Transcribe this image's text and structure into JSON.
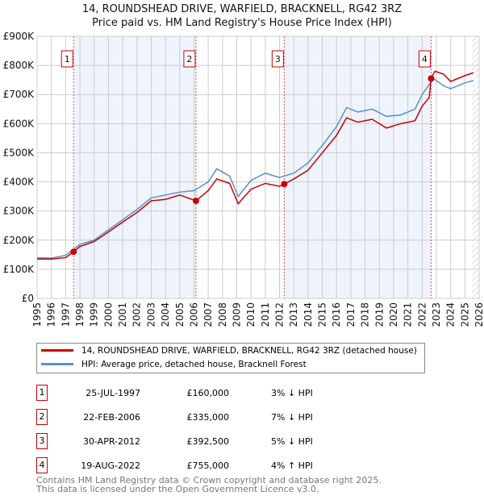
{
  "title": "14, ROUNDSHEAD DRIVE, WARFIELD, BRACKNELL, RG42 3RZ",
  "subtitle": "Price paid vs. HM Land Registry's House Price Index (HPI)",
  "chart_data": {
    "type": "line",
    "ylim": [
      0,
      900000
    ],
    "xlim": [
      1995,
      2026
    ],
    "yticks": [
      {
        "v": 0,
        "l": "£0"
      },
      {
        "v": 100000,
        "l": "£100K"
      },
      {
        "v": 200000,
        "l": "£200K"
      },
      {
        "v": 300000,
        "l": "£300K"
      },
      {
        "v": 400000,
        "l": "£400K"
      },
      {
        "v": 500000,
        "l": "£500K"
      },
      {
        "v": 600000,
        "l": "£600K"
      },
      {
        "v": 700000,
        "l": "£700K"
      },
      {
        "v": 800000,
        "l": "£800K"
      },
      {
        "v": 900000,
        "l": "£900K"
      }
    ],
    "xticks": [
      "1995",
      "1996",
      "1997",
      "1998",
      "1999",
      "2000",
      "2001",
      "2002",
      "2003",
      "2004",
      "2005",
      "2006",
      "2007",
      "2008",
      "2009",
      "2010",
      "2011",
      "2012",
      "2013",
      "2014",
      "2015",
      "2016",
      "2017",
      "2018",
      "2019",
      "2020",
      "2021",
      "2022",
      "2023",
      "2024",
      "2025",
      "2026"
    ],
    "shaded_ranges": [
      [
        1997.56,
        2006.14
      ],
      [
        2012.33,
        2022.63
      ]
    ],
    "hatched_from": 2025.5,
    "series": [
      {
        "name": "14, ROUNDSHEAD DRIVE, WARFIELD, BRACKNELL, RG42 3RZ (detached house)",
        "color": "#cc0000",
        "x": [
          1995,
          1996,
          1997,
          1997.56,
          1998,
          1999,
          2000,
          2001,
          2002,
          2003,
          2004,
          2005,
          2006.14,
          2007,
          2007.6,
          2008.5,
          2009.1,
          2010,
          2011,
          2012,
          2012.33,
          2013,
          2014,
          2015,
          2016,
          2016.7,
          2017.5,
          2018.5,
          2019.5,
          2020.5,
          2021.5,
          2022,
          2022.5,
          2022.63,
          2022.9,
          2023.5,
          2024,
          2025,
          2025.6
        ],
        "y": [
          135000,
          135000,
          140000,
          160000,
          178000,
          195000,
          228000,
          262000,
          295000,
          335000,
          340000,
          355000,
          335000,
          370000,
          410000,
          395000,
          325000,
          375000,
          395000,
          385000,
          392500,
          410000,
          440000,
          500000,
          560000,
          620000,
          605000,
          615000,
          585000,
          600000,
          610000,
          660000,
          690000,
          755000,
          780000,
          770000,
          745000,
          765000,
          775000
        ]
      },
      {
        "name": "HPI: Average price, detached house, Bracknell Forest",
        "color": "#5b8fd0",
        "x": [
          1995,
          1996,
          1997,
          1998,
          1999,
          2000,
          2001,
          2002,
          2003,
          2004,
          2005,
          2006,
          2007,
          2007.6,
          2008.5,
          2009.1,
          2010,
          2011,
          2012,
          2013,
          2014,
          2015,
          2016,
          2016.7,
          2017.5,
          2018.5,
          2019.5,
          2020.5,
          2021.5,
          2022,
          2022.8,
          2023.5,
          2024,
          2025,
          2025.6
        ],
        "y": [
          140000,
          138000,
          148000,
          185000,
          200000,
          235000,
          270000,
          305000,
          345000,
          355000,
          365000,
          370000,
          400000,
          445000,
          420000,
          350000,
          405000,
          430000,
          415000,
          430000,
          465000,
          525000,
          590000,
          655000,
          640000,
          650000,
          625000,
          630000,
          650000,
          700000,
          755000,
          730000,
          720000,
          740000,
          748000
        ]
      }
    ],
    "markers": [
      {
        "n": "1",
        "x": 1997.56,
        "y": 160000
      },
      {
        "n": "2",
        "x": 2006.14,
        "y": 335000
      },
      {
        "n": "3",
        "x": 2012.33,
        "y": 392500
      },
      {
        "n": "4",
        "x": 2022.63,
        "y": 755000
      }
    ]
  },
  "legend": [
    "14, ROUNDSHEAD DRIVE, WARFIELD, BRACKNELL, RG42 3RZ (detached house)",
    "HPI: Average price, detached house, Bracknell Forest"
  ],
  "transactions": [
    {
      "n": "1",
      "date": "25-JUL-1997",
      "price": "£160,000",
      "hpi": "3% ↓ HPI"
    },
    {
      "n": "2",
      "date": "22-FEB-2006",
      "price": "£335,000",
      "hpi": "7% ↓ HPI"
    },
    {
      "n": "3",
      "date": "30-APR-2012",
      "price": "£392,500",
      "hpi": "5% ↓ HPI"
    },
    {
      "n": "4",
      "date": "19-AUG-2022",
      "price": "£755,000",
      "hpi": "4% ↑ HPI"
    }
  ],
  "footer": [
    "Contains HM Land Registry data © Crown copyright and database right 2025.",
    "This data is licensed under the Open Government Licence v3.0."
  ]
}
